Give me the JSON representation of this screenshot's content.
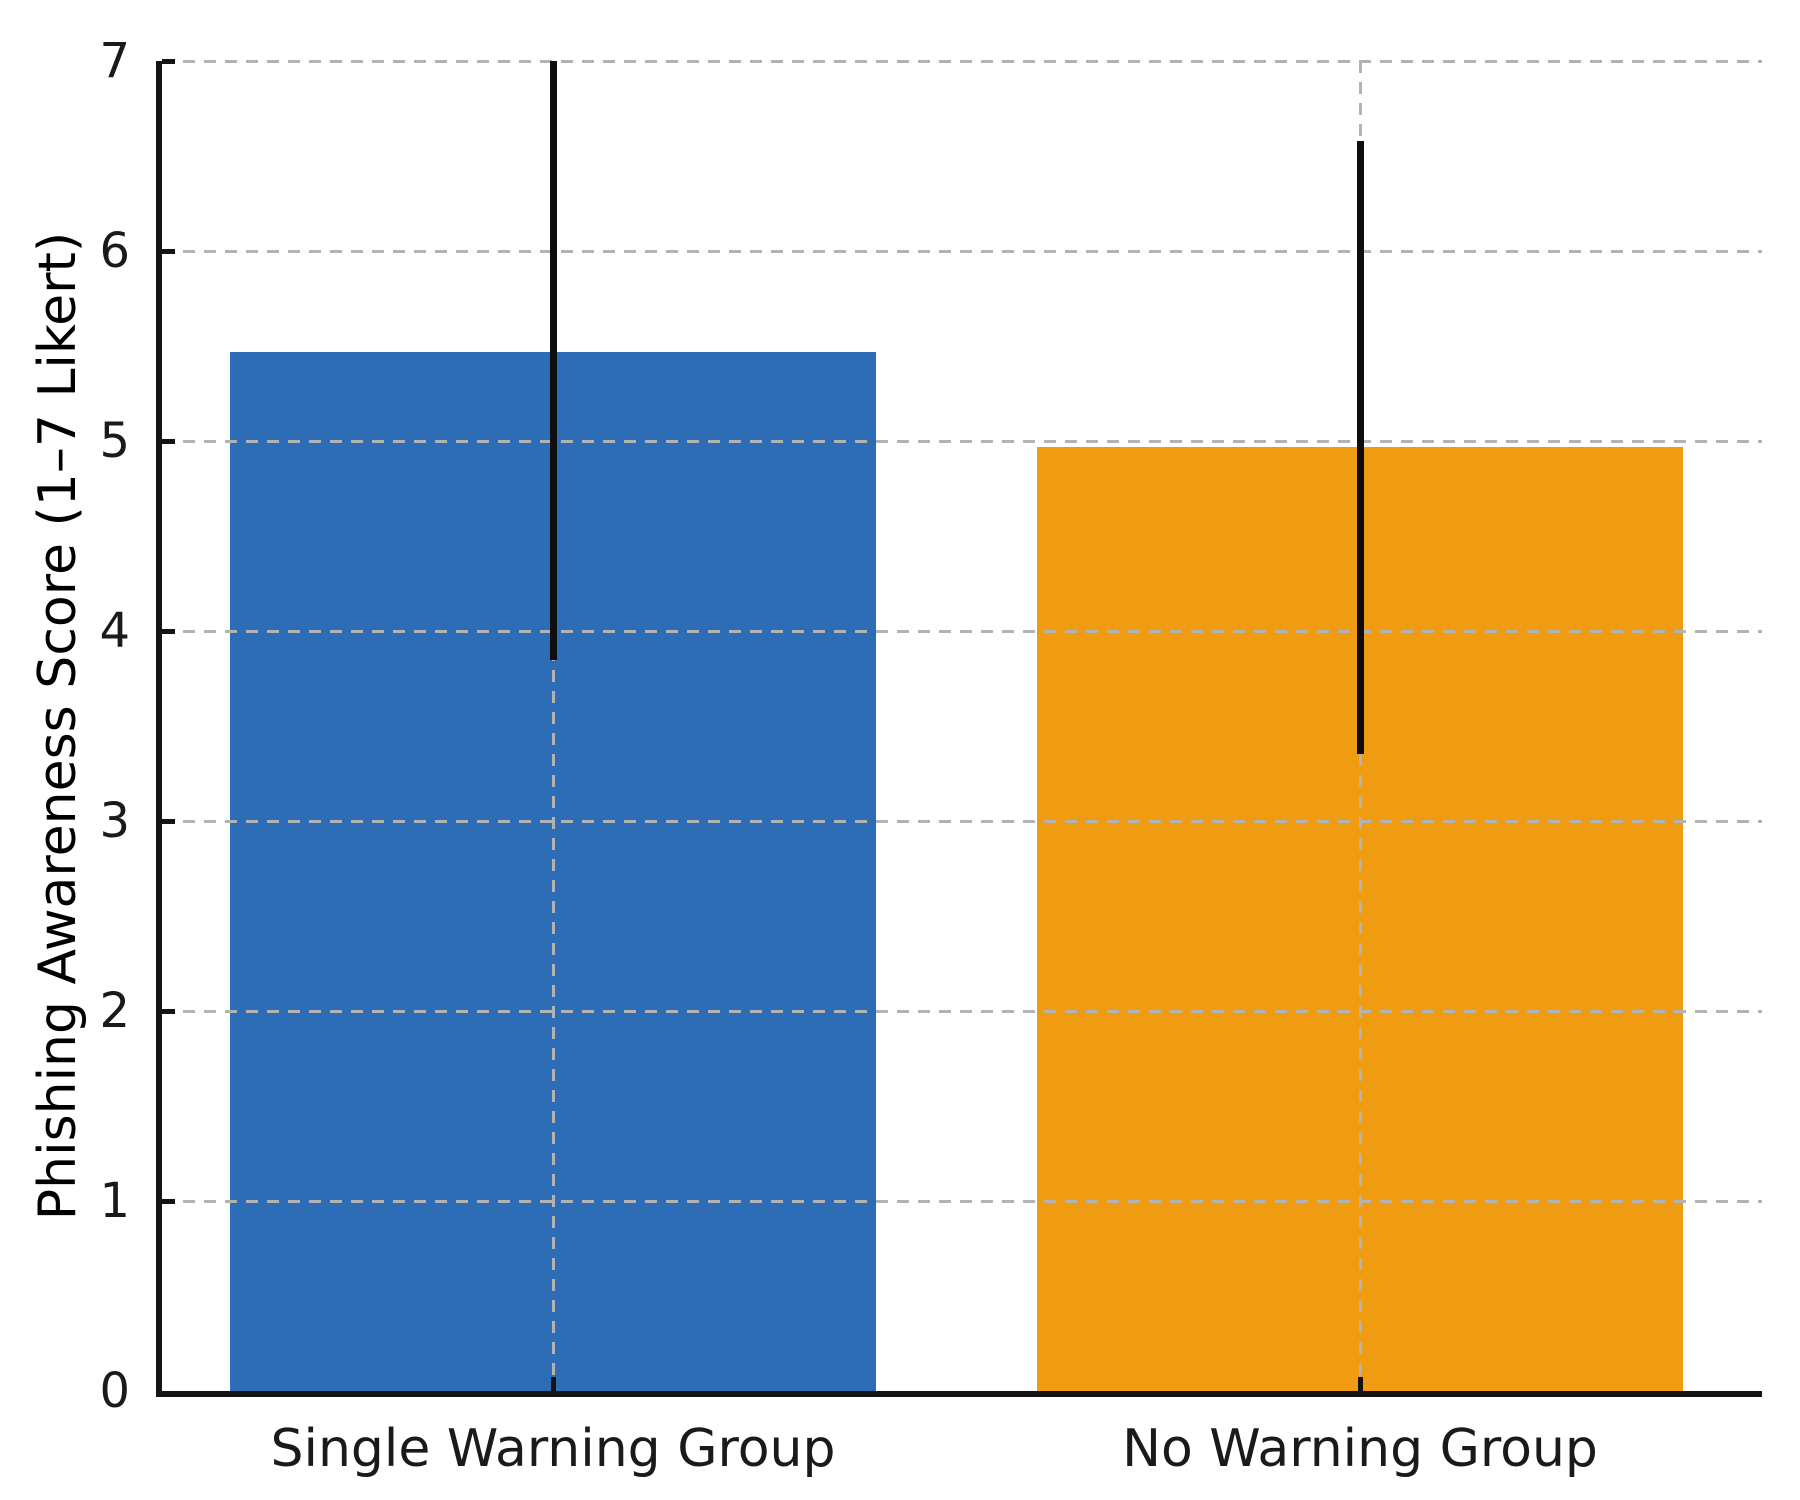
{
  "chart_data": {
    "type": "bar",
    "title": "",
    "categories": [
      "Single Warning Group",
      "No Warning Group"
    ],
    "values": [
      5.47,
      4.97
    ],
    "error_bars": {
      "approx_sd": 1.62,
      "drawn_low": [
        3.85,
        3.35
      ],
      "drawn_high": [
        7.0,
        6.58
      ],
      "note": "upper whisker of first bar reaches the axis maximum 7 (clipped)"
    },
    "bar_colors": [
      "#2d6db5",
      "#f09c13"
    ],
    "error_bar_color": "#0e0e0e",
    "xlabel": "",
    "ylabel": "Phishing Awareness Score (1–7 Likert)",
    "ylim": [
      0,
      7
    ],
    "yticks": [
      0,
      1,
      2,
      3,
      4,
      5,
      6,
      7
    ],
    "grid": {
      "style": "dashed",
      "color": "#b3b3b3",
      "horizontal_at_yticks": true,
      "vertical_at_category_centers": true,
      "drawn_above_bars": true
    },
    "legend": "none",
    "background": "#ffffff",
    "axis_color": "#141414",
    "text_color": "#1a1a1a"
  }
}
